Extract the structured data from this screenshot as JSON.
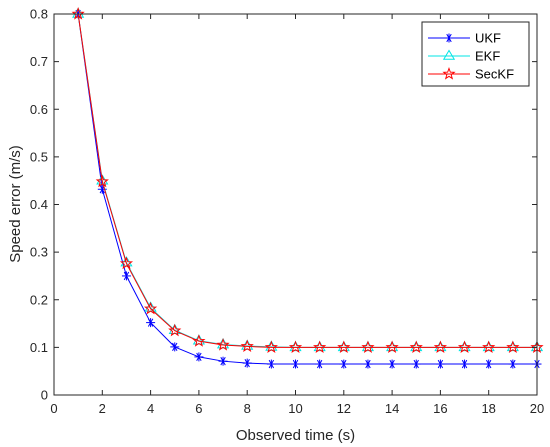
{
  "chart_data": {
    "type": "line",
    "title": "",
    "xlabel": "Observed time (s)",
    "ylabel": "Speed error (m/s)",
    "xlim": [
      0,
      20
    ],
    "ylim": [
      0,
      0.8
    ],
    "xticks": [
      0,
      2,
      4,
      6,
      8,
      10,
      12,
      14,
      16,
      18,
      20
    ],
    "yticks": [
      0,
      0.1,
      0.2,
      0.3,
      0.4,
      0.5,
      0.6,
      0.7,
      0.8
    ],
    "grid": false,
    "legend_position": "top-right",
    "x": [
      1,
      2,
      3,
      4,
      5,
      6,
      7,
      8,
      9,
      10,
      11,
      12,
      13,
      14,
      15,
      16,
      17,
      18,
      19,
      20
    ],
    "series": [
      {
        "name": "UKF",
        "color": "#0000ff",
        "marker": "asterisk",
        "values": [
          0.8,
          0.432,
          0.25,
          0.152,
          0.101,
          0.08,
          0.071,
          0.067,
          0.065,
          0.065,
          0.065,
          0.065,
          0.065,
          0.065,
          0.065,
          0.065,
          0.065,
          0.065,
          0.065,
          0.065
        ]
      },
      {
        "name": "EKF",
        "color": "#00e5e5",
        "marker": "triangle",
        "values": [
          0.8,
          0.45,
          0.278,
          0.183,
          0.136,
          0.114,
          0.106,
          0.103,
          0.101,
          0.1,
          0.1,
          0.1,
          0.1,
          0.1,
          0.1,
          0.1,
          0.1,
          0.1,
          0.1,
          0.1
        ]
      },
      {
        "name": "SecKF",
        "color": "#ff0000",
        "marker": "star",
        "values": [
          0.8,
          0.448,
          0.276,
          0.181,
          0.135,
          0.113,
          0.105,
          0.102,
          0.1,
          0.1,
          0.1,
          0.1,
          0.1,
          0.1,
          0.1,
          0.1,
          0.1,
          0.1,
          0.1,
          0.1
        ]
      }
    ]
  }
}
